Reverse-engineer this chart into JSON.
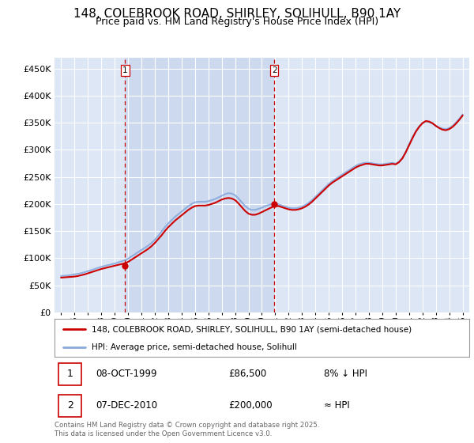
{
  "title": "148, COLEBROOK ROAD, SHIRLEY, SOLIHULL, B90 1AY",
  "subtitle": "Price paid vs. HM Land Registry's House Price Index (HPI)",
  "legend_line1": "148, COLEBROOK ROAD, SHIRLEY, SOLIHULL, B90 1AY (semi-detached house)",
  "legend_line2": "HPI: Average price, semi-detached house, Solihull",
  "footer": "Contains HM Land Registry data © Crown copyright and database right 2025.\nThis data is licensed under the Open Government Licence v3.0.",
  "transaction1_date": "08-OCT-1999",
  "transaction1_price": "£86,500",
  "transaction1_hpi": "8% ↓ HPI",
  "transaction2_date": "07-DEC-2010",
  "transaction2_price": "£200,000",
  "transaction2_hpi": "≈ HPI",
  "sale1_x": 1999.77,
  "sale1_y": 86500,
  "sale2_x": 2010.92,
  "sale2_y": 200000,
  "yticks": [
    0,
    50000,
    100000,
    150000,
    200000,
    250000,
    300000,
    350000,
    400000,
    450000
  ],
  "ylim": [
    0,
    470000
  ],
  "xlim_left": 1994.5,
  "xlim_right": 2025.5,
  "fig_bg": "#ffffff",
  "plot_bg": "#dce6f5",
  "between_bg": "#cdd9ee",
  "grid_color": "#ffffff",
  "red_line_color": "#cc0000",
  "blue_line_color": "#88aadd",
  "dashed_vline_color": "#cc0000",
  "title_fontsize": 11,
  "subtitle_fontsize": 9,
  "years": [
    1995.0,
    1995.25,
    1995.5,
    1995.75,
    1996.0,
    1996.25,
    1996.5,
    1996.75,
    1997.0,
    1997.25,
    1997.5,
    1997.75,
    1998.0,
    1998.25,
    1998.5,
    1998.75,
    1999.0,
    1999.25,
    1999.5,
    1999.75,
    2000.0,
    2000.25,
    2000.5,
    2000.75,
    2001.0,
    2001.25,
    2001.5,
    2001.75,
    2002.0,
    2002.25,
    2002.5,
    2002.75,
    2003.0,
    2003.25,
    2003.5,
    2003.75,
    2004.0,
    2004.25,
    2004.5,
    2004.75,
    2005.0,
    2005.25,
    2005.5,
    2005.75,
    2006.0,
    2006.25,
    2006.5,
    2006.75,
    2007.0,
    2007.25,
    2007.5,
    2007.75,
    2008.0,
    2008.25,
    2008.5,
    2008.75,
    2009.0,
    2009.25,
    2009.5,
    2009.75,
    2010.0,
    2010.25,
    2010.5,
    2010.75,
    2011.0,
    2011.25,
    2011.5,
    2011.75,
    2012.0,
    2012.25,
    2012.5,
    2012.75,
    2013.0,
    2013.25,
    2013.5,
    2013.75,
    2014.0,
    2014.25,
    2014.5,
    2014.75,
    2015.0,
    2015.25,
    2015.5,
    2015.75,
    2016.0,
    2016.25,
    2016.5,
    2016.75,
    2017.0,
    2017.25,
    2017.5,
    2017.75,
    2018.0,
    2018.25,
    2018.5,
    2018.75,
    2019.0,
    2019.25,
    2019.5,
    2019.75,
    2020.0,
    2020.25,
    2020.5,
    2020.75,
    2021.0,
    2021.25,
    2021.5,
    2021.75,
    2022.0,
    2022.25,
    2022.5,
    2022.75,
    2023.0,
    2023.25,
    2023.5,
    2023.75,
    2024.0,
    2024.25,
    2024.5,
    2024.75,
    2025.0
  ],
  "hpi_values": [
    67000,
    67500,
    68000,
    69000,
    70000,
    71000,
    72500,
    74000,
    76000,
    78000,
    80000,
    82000,
    84000,
    85500,
    87000,
    88500,
    90000,
    92000,
    94000,
    96000,
    99000,
    103000,
    107000,
    111000,
    115000,
    119000,
    123000,
    128000,
    134000,
    141000,
    149000,
    157000,
    164000,
    170000,
    176000,
    181000,
    186000,
    191000,
    196000,
    200000,
    203000,
    204000,
    204000,
    204000,
    205000,
    207000,
    209000,
    212000,
    215000,
    218000,
    220000,
    219000,
    216000,
    210000,
    203000,
    196000,
    191000,
    189000,
    189000,
    191000,
    193000,
    196000,
    198000,
    200000,
    200000,
    199000,
    197000,
    195000,
    193000,
    192000,
    192000,
    193000,
    195000,
    198000,
    202000,
    207000,
    213000,
    219000,
    225000,
    231000,
    237000,
    242000,
    246000,
    250000,
    254000,
    258000,
    262000,
    266000,
    270000,
    273000,
    275000,
    276000,
    276000,
    275000,
    274000,
    273000,
    273000,
    274000,
    275000,
    276000,
    274000,
    278000,
    285000,
    296000,
    310000,
    323000,
    334000,
    343000,
    349000,
    352000,
    351000,
    348000,
    344000,
    341000,
    339000,
    338000,
    340000,
    344000,
    350000,
    357000,
    365000
  ],
  "red_values": [
    64000,
    64500,
    65000,
    65500,
    66000,
    67000,
    68500,
    70000,
    72000,
    74000,
    76000,
    78000,
    80000,
    81500,
    83000,
    84500,
    86000,
    87500,
    89000,
    90500,
    93000,
    97000,
    101000,
    105000,
    109000,
    113000,
    117000,
    122000,
    128000,
    135000,
    142000,
    150000,
    157000,
    163000,
    169000,
    174000,
    179000,
    184000,
    189000,
    193000,
    196000,
    197000,
    197000,
    197000,
    198000,
    200000,
    202000,
    205000,
    208000,
    210000,
    211000,
    210000,
    207000,
    201000,
    194000,
    187000,
    182000,
    180000,
    180000,
    182000,
    185000,
    188000,
    191000,
    194000,
    196000,
    196000,
    194000,
    192000,
    190000,
    189000,
    189000,
    190000,
    192000,
    195000,
    199000,
    204000,
    210000,
    216000,
    222000,
    228000,
    234000,
    239000,
    243000,
    247000,
    251000,
    255000,
    259000,
    263000,
    267000,
    270000,
    272000,
    274000,
    274000,
    273000,
    272000,
    271000,
    271000,
    272000,
    273000,
    274000,
    273000,
    277000,
    284000,
    295000,
    308000,
    321000,
    333000,
    342000,
    349000,
    353000,
    352000,
    349000,
    344000,
    340000,
    337000,
    336000,
    338000,
    342000,
    348000,
    355000,
    363000
  ]
}
